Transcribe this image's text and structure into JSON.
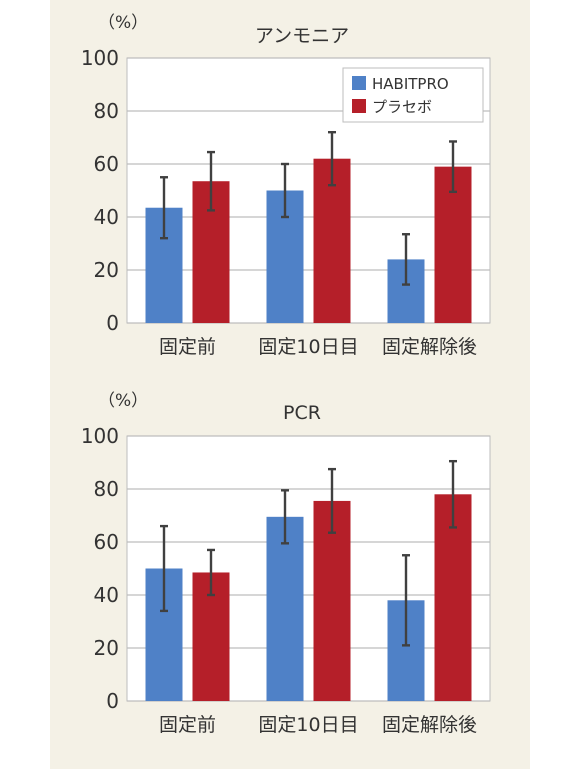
{
  "colors": {
    "habitpro": "#4f81c7",
    "placebo": "#b51f29",
    "error_bar": "#404040",
    "grid": "#bdbdbd",
    "plot_bg": "#ffffff",
    "panel_bg": "#f4f1e6"
  },
  "chart_data": [
    {
      "type": "bar",
      "title": "アンモニア",
      "ylabel": "（%）",
      "ylim": [
        0,
        100
      ],
      "yticks": [
        "0",
        "20",
        "40",
        "60",
        "80",
        "100"
      ],
      "categories": [
        "固定前",
        "固定10日目",
        "固定解除後"
      ],
      "legend": "top-right",
      "series": [
        {
          "name": "HABITPRO",
          "values": [
            43.5,
            50,
            24
          ],
          "error": [
            11.5,
            10,
            9.5
          ]
        },
        {
          "name": "プラセボ",
          "values": [
            53.5,
            62,
            59
          ],
          "error": [
            11,
            10,
            9.5
          ]
        }
      ]
    },
    {
      "type": "bar",
      "title": "PCR",
      "ylabel": "（%）",
      "ylim": [
        0,
        100
      ],
      "yticks": [
        "0",
        "20",
        "40",
        "60",
        "80",
        "100"
      ],
      "categories": [
        "固定前",
        "固定10日目",
        "固定解除後"
      ],
      "series": [
        {
          "name": "HABITPRO",
          "values": [
            50,
            69.5,
            38
          ],
          "error": [
            16,
            10,
            17
          ]
        },
        {
          "name": "プラセボ",
          "values": [
            48.5,
            75.5,
            78
          ],
          "error": [
            8.5,
            12,
            12.5
          ]
        }
      ]
    }
  ]
}
